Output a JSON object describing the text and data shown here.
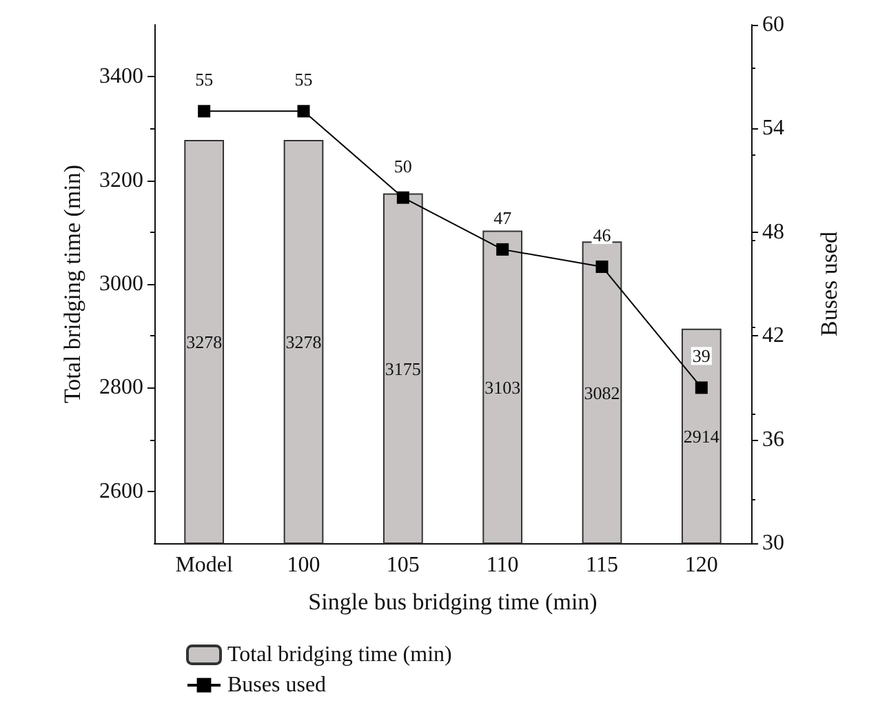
{
  "chart_data": {
    "type": "bar",
    "xlabel": "Single bus bridging time (min)",
    "ylabel": "Total bridging time (min)",
    "y2label": "Buses used",
    "categories": [
      "Model",
      "100",
      "105",
      "110",
      "115",
      "120"
    ],
    "series": [
      {
        "name": "Total bridging time (min)",
        "color": "#c8c4c4",
        "values": [
          3278,
          3278,
          3175,
          3103,
          3082,
          2914
        ]
      },
      {
        "name": "Buses used",
        "type": "line",
        "axis": "y2",
        "color": "#000000",
        "marker": "square",
        "values": [
          55,
          55,
          50,
          47,
          46,
          39
        ]
      }
    ],
    "ylim": [
      2500,
      3500
    ],
    "yticks": [
      2600,
      2800,
      3000,
      3200,
      3400
    ],
    "y2lim": [
      30,
      60
    ],
    "y2ticks": [
      30,
      36,
      42,
      48,
      54,
      60
    ],
    "data_labels": true,
    "legend": "bottom left",
    "grid": false
  }
}
